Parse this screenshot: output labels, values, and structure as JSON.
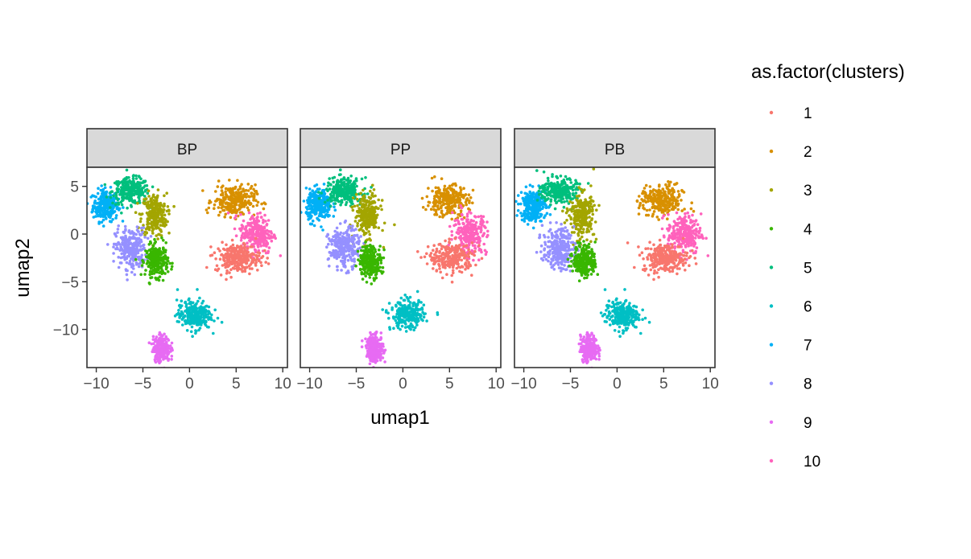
{
  "chart_data": {
    "type": "scatter",
    "facet_by": "sample",
    "facets": [
      {
        "label": "BP"
      },
      {
        "label": "PP"
      },
      {
        "label": "PB"
      }
    ],
    "xlabel": "umap1",
    "ylabel": "umap2",
    "xlim": [
      -11,
      10.5
    ],
    "ylim": [
      -14,
      7
    ],
    "xticks": [
      {
        "value": -10,
        "label": "−10"
      },
      {
        "value": -5,
        "label": "−5"
      },
      {
        "value": 0,
        "label": "0"
      },
      {
        "value": 5,
        "label": "5"
      },
      {
        "value": 10,
        "label": "10"
      }
    ],
    "yticks": [
      {
        "value": 5,
        "label": "5"
      },
      {
        "value": 0,
        "label": "0"
      },
      {
        "value": -5,
        "label": "−5"
      },
      {
        "value": -10,
        "label": "−10"
      }
    ],
    "grid": false,
    "legend": {
      "title": "as.factor(clusters)",
      "position": "right",
      "entries": [
        {
          "label": "1",
          "color": "#F8766D"
        },
        {
          "label": "2",
          "color": "#D89000"
        },
        {
          "label": "3",
          "color": "#A3A500"
        },
        {
          "label": "4",
          "color": "#39B600"
        },
        {
          "label": "5",
          "color": "#00BF7D"
        },
        {
          "label": "6",
          "color": "#00BFC4"
        },
        {
          "label": "7",
          "color": "#00B0F6"
        },
        {
          "label": "8",
          "color": "#9590FF"
        },
        {
          "label": "9",
          "color": "#E76BF3"
        },
        {
          "label": "10",
          "color": "#FF62BC"
        }
      ]
    },
    "clusters": [
      {
        "cluster": "7",
        "center": [
          -9.0,
          3.0
        ],
        "spread": [
          0.9,
          1.1
        ]
      },
      {
        "cluster": "5",
        "center": [
          -6.3,
          4.5
        ],
        "spread": [
          1.3,
          0.9
        ]
      },
      {
        "cluster": "3",
        "center": [
          -3.8,
          2.0
        ],
        "spread": [
          0.9,
          1.5
        ]
      },
      {
        "cluster": "8",
        "center": [
          -6.3,
          -1.5
        ],
        "spread": [
          1.1,
          1.4
        ]
      },
      {
        "cluster": "4",
        "center": [
          -3.5,
          -2.8
        ],
        "spread": [
          0.8,
          1.1
        ]
      },
      {
        "cluster": "2",
        "center": [
          4.8,
          3.5
        ],
        "spread": [
          1.5,
          1.1
        ]
      },
      {
        "cluster": "10",
        "center": [
          7.2,
          0.0
        ],
        "spread": [
          1.2,
          1.4
        ]
      },
      {
        "cluster": "1",
        "center": [
          5.2,
          -2.5
        ],
        "spread": [
          1.6,
          1.0
        ]
      },
      {
        "cluster": "6",
        "center": [
          0.5,
          -8.5
        ],
        "spread": [
          1.2,
          1.0
        ]
      },
      {
        "cluster": "9",
        "center": [
          -3.0,
          -12.0
        ],
        "spread": [
          0.6,
          0.9
        ]
      }
    ]
  }
}
